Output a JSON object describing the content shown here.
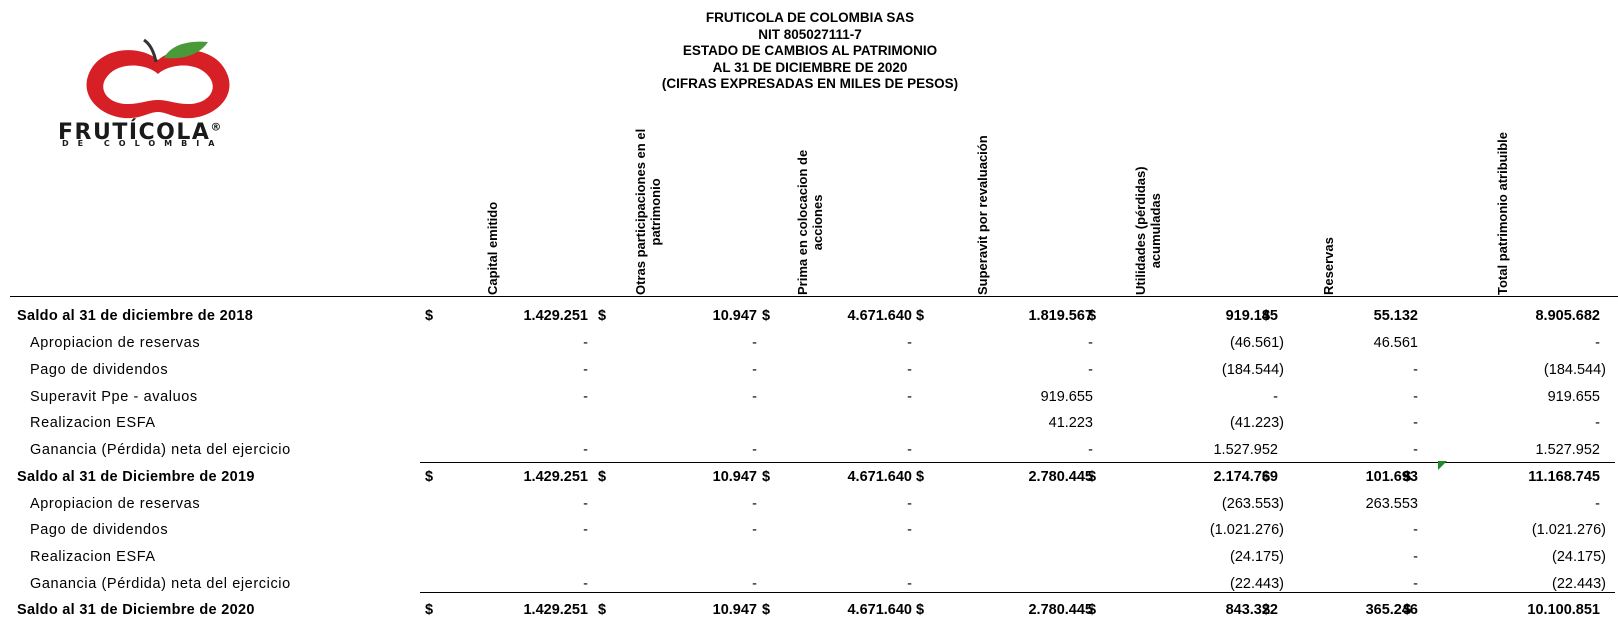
{
  "company": {
    "name": "FRUTICOLA DE COLOMBIA SAS",
    "nit": "NIT 805027111-7",
    "statement": "ESTADO DE CAMBIOS AL PATRIMONIO",
    "date": "AL 31 DE DICIEMBRE DE 2020",
    "units": "(CIFRAS EXPRESADAS EN MILES DE PESOS)"
  },
  "logo": {
    "word": "FRUTÍCOLA",
    "registered": "®",
    "sub": "DE COLOMBIA",
    "apple_color": "#d71f26",
    "leaf_color": "#4a9a3a"
  },
  "columns": {
    "capital": {
      "l1": "Capital emitido",
      "l2": ""
    },
    "otras": {
      "l1": "Otras participaciones en el",
      "l2": "patrimonio"
    },
    "prima": {
      "l1": "Prima en colocacion de",
      "l2": "acciones"
    },
    "superavit": {
      "l1": "Superavit por revaluación",
      "l2": ""
    },
    "utilidades": {
      "l1": "Utilidades (pérdidas)",
      "l2": "acumuladas"
    },
    "reservas": {
      "l1": "Reservas",
      "l2": ""
    },
    "total": {
      "l1": "Total patrimonio atribuible",
      "l2": ""
    }
  },
  "rows": [
    {
      "label": "Saldo al 31 de diciembre de 2018",
      "bold": true,
      "cur": {
        "capital": "$",
        "otras": "$",
        "prima": "$",
        "superavit": "$",
        "utilidades": "$",
        "reservas": "$",
        "total": ""
      },
      "v": {
        "capital": "1.429.251",
        "otras": "10.947",
        "prima": "4.671.640",
        "superavit": "1.819.567",
        "utilidades": "919.145",
        "reservas": "55.132",
        "total": "8.905.682"
      }
    },
    {
      "label": "Apropiacion de reservas",
      "bold": false,
      "v": {
        "capital": "-",
        "otras": "-",
        "prima": "-",
        "superavit": "-",
        "utilidades": "(46.561)",
        "reservas": "46.561",
        "total": "-"
      }
    },
    {
      "label": "Pago de dividendos",
      "bold": false,
      "v": {
        "capital": "-",
        "otras": "-",
        "prima": "-",
        "superavit": "-",
        "utilidades": "(184.544)",
        "reservas": "-",
        "total": "(184.544)"
      }
    },
    {
      "label": "Superavit Ppe - avaluos",
      "bold": false,
      "v": {
        "capital": "-",
        "otras": "-",
        "prima": "-",
        "superavit": "919.655",
        "utilidades": "-",
        "reservas": "-",
        "total": "919.655"
      }
    },
    {
      "label": "Realizacion ESFA",
      "bold": false,
      "v": {
        "capital": "",
        "otras": "",
        "prima": "",
        "superavit": "41.223",
        "utilidades": "(41.223)",
        "reservas": "-",
        "total": "-"
      }
    },
    {
      "label": "Ganancia (Pérdida) neta del ejercicio",
      "bold": false,
      "v": {
        "capital": "-",
        "otras": "-",
        "prima": "-",
        "superavit": "-",
        "utilidades": "1.527.952",
        "reservas": "-",
        "total": "1.527.952"
      }
    },
    {
      "label": "Saldo al 31 de Diciembre de 2019",
      "bold": true,
      "cur": {
        "capital": "$",
        "otras": "$",
        "prima": "$",
        "superavit": "$",
        "utilidades": "$",
        "reservas": "$",
        "total": "$"
      },
      "v": {
        "capital": "1.429.251",
        "otras": "10.947",
        "prima": "4.671.640",
        "superavit": "2.780.445",
        "utilidades": "2.174.769",
        "reservas": "101.693",
        "total": "11.168.745"
      }
    },
    {
      "label": "Apropiacion de reservas",
      "bold": false,
      "v": {
        "capital": "-",
        "otras": "-",
        "prima": "-",
        "superavit": "",
        "utilidades": "(263.553)",
        "reservas": "263.553",
        "total": "-"
      }
    },
    {
      "label": "Pago de dividendos",
      "bold": false,
      "v": {
        "capital": "-",
        "otras": "-",
        "prima": "-",
        "superavit": "",
        "utilidades": "(1.021.276)",
        "reservas": "-",
        "total": "(1.021.276)"
      }
    },
    {
      "label": "Realizacion ESFA",
      "bold": false,
      "v": {
        "capital": "",
        "otras": "",
        "prima": "",
        "superavit": "",
        "utilidades": "(24.175)",
        "reservas": "-",
        "total": "(24.175)"
      }
    },
    {
      "label": "Ganancia (Pérdida) neta del ejercicio",
      "bold": false,
      "v": {
        "capital": "-",
        "otras": "-",
        "prima": "-",
        "superavit": "",
        "utilidades": "(22.443)",
        "reservas": "-",
        "total": "(22.443)"
      }
    },
    {
      "label": "Saldo al 31 de Diciembre de 2020",
      "bold": true,
      "cur": {
        "capital": "$",
        "otras": "$",
        "prima": "$",
        "superavit": "$",
        "utilidades": "$",
        "reservas": "$",
        "total": "$"
      },
      "v": {
        "capital": "1.429.251",
        "otras": "10.947",
        "prima": "4.671.640",
        "superavit": "2.780.445",
        "utilidades": "843.322",
        "reservas": "365.246",
        "total": "10.100.851"
      }
    }
  ]
}
